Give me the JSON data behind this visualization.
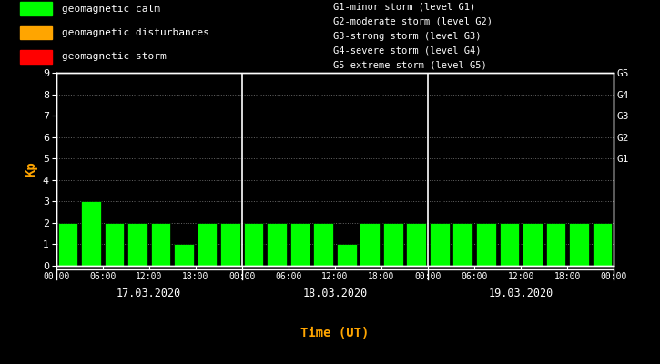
{
  "background_color": "#000000",
  "plot_bg_color": "#000000",
  "bar_color": "#00ff00",
  "text_color": "#ffffff",
  "orange_color": "#ffa500",
  "grid_color": "#666666",
  "days": [
    "17.03.2020",
    "18.03.2020",
    "19.03.2020"
  ],
  "kp_values": [
    2,
    3,
    2,
    2,
    2,
    1,
    2,
    2,
    2,
    2,
    2,
    2,
    1,
    2,
    2,
    2,
    2,
    2,
    2,
    2,
    2,
    2,
    2,
    2
  ],
  "ylim": [
    0,
    9
  ],
  "yticks": [
    0,
    1,
    2,
    3,
    4,
    5,
    6,
    7,
    8,
    9
  ],
  "ylabel": "Kp",
  "xlabel": "Time (UT)",
  "right_labels": [
    "G5",
    "G4",
    "G3",
    "G2",
    "G1"
  ],
  "right_label_values": [
    9,
    8,
    7,
    6,
    5
  ],
  "legend_items": [
    {
      "color": "#00ff00",
      "label": "geomagnetic calm"
    },
    {
      "color": "#ffa500",
      "label": "geomagnetic disturbances"
    },
    {
      "color": "#ff0000",
      "label": "geomagnetic storm"
    }
  ],
  "storm_legend": [
    "G1-minor storm (level G1)",
    "G2-moderate storm (level G2)",
    "G3-strong storm (level G3)",
    "G4-severe storm (level G4)",
    "G5-extreme storm (level G5)"
  ],
  "xtick_labels": [
    "00:00",
    "06:00",
    "12:00",
    "18:00",
    "00:00",
    "06:00",
    "12:00",
    "18:00",
    "00:00",
    "06:00",
    "12:00",
    "18:00",
    "00:00"
  ],
  "bar_width": 0.85
}
